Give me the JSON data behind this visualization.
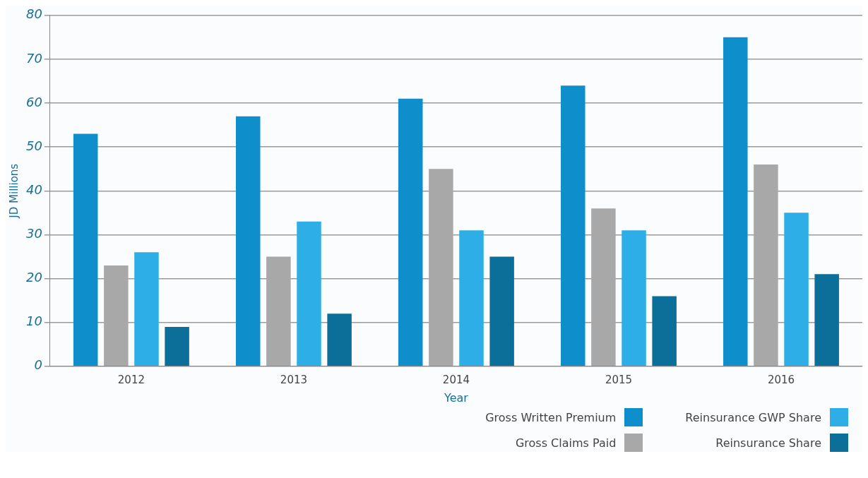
{
  "chart_data": {
    "type": "bar",
    "xlabel": "Year",
    "ylabel": "JD Millions",
    "categories": [
      "2012",
      "2013",
      "2014",
      "2015",
      "2016"
    ],
    "series": [
      {
        "name": "Gross Written Premium",
        "color": "#0e8fcc",
        "values": [
          53,
          57,
          61,
          64,
          75
        ]
      },
      {
        "name": "Gross Claims Paid",
        "color": "#a8a8a8",
        "values": [
          23,
          25,
          45,
          36,
          46
        ]
      },
      {
        "name": "Reinsurance GWP Share",
        "color": "#2eaee6",
        "values": [
          26,
          33,
          31,
          31,
          35
        ]
      },
      {
        "name": "Reinsurance Share",
        "color": "#0b6f9a",
        "values": [
          9,
          12,
          25,
          16,
          21
        ]
      }
    ],
    "ylim": [
      0,
      80
    ],
    "yticks": [
      0,
      10,
      20,
      30,
      40,
      50,
      60,
      70,
      80
    ],
    "grid": "y",
    "legend": "bottom right"
  }
}
